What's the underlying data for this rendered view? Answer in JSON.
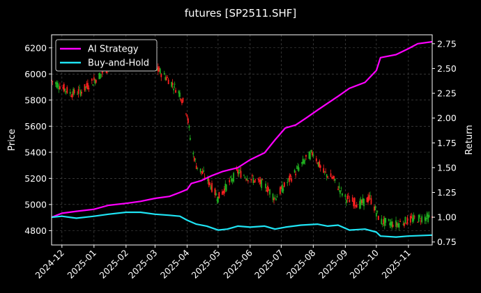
{
  "chart_data": {
    "type": "line",
    "title": "futures [SP2511.SHF]",
    "xlabel": "",
    "ylabel_left": "Price",
    "ylabel_right": "Return",
    "x_tick_labels": [
      "2024-12",
      "2025-01",
      "2025-02",
      "2025-03",
      "2025-04",
      "2025-05",
      "2025-06",
      "2025-07",
      "2025-08",
      "2025-09",
      "2025-10",
      "2025-11"
    ],
    "y_left_ticks": [
      4800,
      5000,
      5200,
      5400,
      5600,
      5800,
      6000,
      6200
    ],
    "y_right_ticks": [
      0.75,
      1.0,
      1.25,
      1.5,
      1.75,
      2.0,
      2.25,
      2.5,
      2.75
    ],
    "ylim_left": [
      4690,
      6300
    ],
    "ylim_right": [
      0.72,
      2.84
    ],
    "xlim": [
      "2024-11-21",
      "2025-11-24"
    ],
    "grid": true,
    "legend_position": "top-left",
    "colors": {
      "background": "#000000",
      "up_candle": "#ff2020",
      "down_candle": "#20b020",
      "ai_strategy": "#ff00ff",
      "buy_and_hold": "#1fe5f5",
      "grid": "#555555"
    },
    "series": [
      {
        "name": "AI Strategy",
        "axis": "right",
        "points": [
          [
            "2024-11-21",
            1.0
          ],
          [
            "2024-12-01",
            1.04
          ],
          [
            "2024-12-15",
            1.06
          ],
          [
            "2025-01-01",
            1.08
          ],
          [
            "2025-01-15",
            1.12
          ],
          [
            "2025-02-01",
            1.14
          ],
          [
            "2025-02-15",
            1.16
          ],
          [
            "2025-03-01",
            1.19
          ],
          [
            "2025-03-15",
            1.21
          ],
          [
            "2025-03-25",
            1.25
          ],
          [
            "2025-04-01",
            1.28
          ],
          [
            "2025-04-05",
            1.34
          ],
          [
            "2025-04-15",
            1.37
          ],
          [
            "2025-04-25",
            1.42
          ],
          [
            "2025-05-05",
            1.46
          ],
          [
            "2025-05-20",
            1.5
          ],
          [
            "2025-06-01",
            1.58
          ],
          [
            "2025-06-15",
            1.65
          ],
          [
            "2025-06-25",
            1.78
          ],
          [
            "2025-07-05",
            1.9
          ],
          [
            "2025-07-15",
            1.93
          ],
          [
            "2025-07-25",
            2.0
          ],
          [
            "2025-08-05",
            2.08
          ],
          [
            "2025-08-15",
            2.15
          ],
          [
            "2025-08-25",
            2.22
          ],
          [
            "2025-09-05",
            2.3
          ],
          [
            "2025-09-20",
            2.36
          ],
          [
            "2025-10-01",
            2.48
          ],
          [
            "2025-10-05",
            2.61
          ],
          [
            "2025-10-20",
            2.64
          ],
          [
            "2025-11-01",
            2.7
          ],
          [
            "2025-11-10",
            2.75
          ],
          [
            "2025-11-24",
            2.77
          ]
        ]
      },
      {
        "name": "Buy-and-Hold",
        "axis": "right",
        "points": [
          [
            "2024-11-21",
            1.0
          ],
          [
            "2024-12-01",
            1.01
          ],
          [
            "2024-12-15",
            0.99
          ],
          [
            "2025-01-01",
            1.01
          ],
          [
            "2025-01-15",
            1.03
          ],
          [
            "2025-02-01",
            1.05
          ],
          [
            "2025-02-15",
            1.05
          ],
          [
            "2025-03-01",
            1.03
          ],
          [
            "2025-03-15",
            1.02
          ],
          [
            "2025-03-25",
            1.01
          ],
          [
            "2025-04-01",
            0.97
          ],
          [
            "2025-04-10",
            0.93
          ],
          [
            "2025-04-20",
            0.91
          ],
          [
            "2025-05-01",
            0.87
          ],
          [
            "2025-05-10",
            0.88
          ],
          [
            "2025-05-20",
            0.91
          ],
          [
            "2025-06-01",
            0.9
          ],
          [
            "2025-06-15",
            0.91
          ],
          [
            "2025-06-25",
            0.88
          ],
          [
            "2025-07-05",
            0.9
          ],
          [
            "2025-07-20",
            0.92
          ],
          [
            "2025-08-05",
            0.93
          ],
          [
            "2025-08-15",
            0.91
          ],
          [
            "2025-08-25",
            0.92
          ],
          [
            "2025-09-05",
            0.87
          ],
          [
            "2025-09-20",
            0.88
          ],
          [
            "2025-10-01",
            0.85
          ],
          [
            "2025-10-05",
            0.81
          ],
          [
            "2025-10-20",
            0.8
          ],
          [
            "2025-11-01",
            0.81
          ],
          [
            "2025-11-24",
            0.82
          ]
        ]
      }
    ],
    "price_anchors": [
      [
        "2024-11-21",
        5950
      ],
      [
        "2024-12-01",
        5900
      ],
      [
        "2024-12-10",
        5850
      ],
      [
        "2024-12-20",
        5870
      ],
      [
        "2025-01-01",
        5950
      ],
      [
        "2025-01-15",
        6050
      ],
      [
        "2025-02-01",
        6120
      ],
      [
        "2025-02-15",
        6150
      ],
      [
        "2025-03-01",
        6050
      ],
      [
        "2025-03-15",
        5950
      ],
      [
        "2025-03-25",
        5850
      ],
      [
        "2025-04-01",
        5700
      ],
      [
        "2025-04-05",
        5450
      ],
      [
        "2025-04-10",
        5300
      ],
      [
        "2025-04-20",
        5200
      ],
      [
        "2025-05-01",
        5050
      ],
      [
        "2025-05-10",
        5150
      ],
      [
        "2025-05-20",
        5250
      ],
      [
        "2025-06-01",
        5200
      ],
      [
        "2025-06-15",
        5150
      ],
      [
        "2025-06-25",
        5050
      ],
      [
        "2025-07-05",
        5150
      ],
      [
        "2025-07-15",
        5250
      ],
      [
        "2025-07-25",
        5350
      ],
      [
        "2025-08-01",
        5400
      ],
      [
        "2025-08-10",
        5250
      ],
      [
        "2025-08-20",
        5200
      ],
      [
        "2025-09-01",
        5050
      ],
      [
        "2025-09-15",
        5000
      ],
      [
        "2025-09-25",
        5050
      ],
      [
        "2025-10-05",
        4870
      ],
      [
        "2025-10-20",
        4850
      ],
      [
        "2025-11-01",
        4880
      ],
      [
        "2025-11-15",
        4900
      ],
      [
        "2025-11-24",
        4900
      ]
    ]
  }
}
